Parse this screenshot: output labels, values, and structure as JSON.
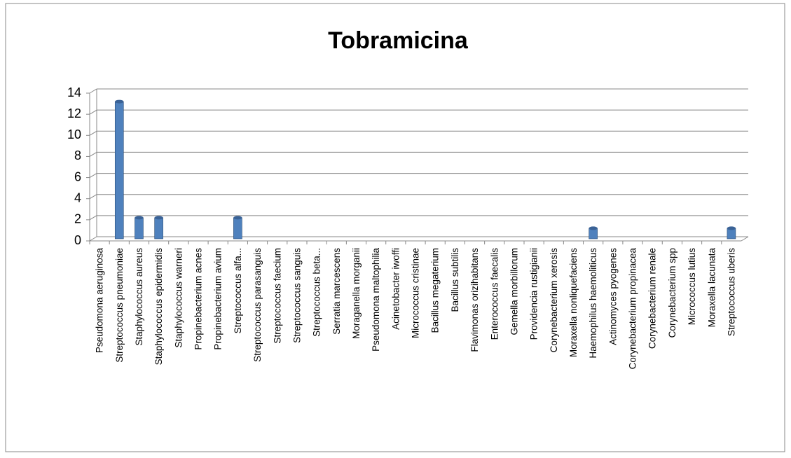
{
  "chart_data": {
    "type": "bar",
    "title": "Tobramicina",
    "categories": [
      "Pseudomona aeruginosa",
      "Streptococcus pneumoniae",
      "Staphylococcus aureus",
      "Staphylococcus epidermidis",
      "Staphylococcus warneri",
      "Propinebacterium acnes",
      "Propinebacterium avium",
      "Streptococcus alfa...",
      "Streptococcus parasanguis",
      "Streptococcus faecium",
      "Streptococcus sanguis",
      "Streptococcus beta...",
      "Serratia marcescens",
      "Moraganella morganii",
      "Pseudomona maltophilia",
      "Acinetobacter iwoffi",
      "Micrococcus cristinae",
      "Bacillus megaterium",
      "Bacillus subtilis",
      "Flavimonas orizihabitans",
      "Enterococcus faecalis",
      "Gemella morbillorum",
      "Providencia rustigianii",
      "Corynebacterium xerosis",
      "Moraxella nonliquefaciens",
      "Haemophilus haemoliticus",
      "Actinomyces pyogenes",
      "Corynebacterium propinacea",
      "Corynebacterium renale",
      "Corynebacterium spp",
      "Micrococcus lutius",
      "Moraxella lacunata",
      "Streptococcus uberis"
    ],
    "values": [
      0,
      13,
      2,
      2,
      0,
      0,
      0,
      2,
      0,
      0,
      0,
      0,
      0,
      0,
      0,
      0,
      0,
      0,
      0,
      0,
      0,
      0,
      0,
      0,
      0,
      1,
      0,
      0,
      0,
      0,
      0,
      0,
      1
    ],
    "color": "#4f81bd",
    "ylim": [
      0,
      14
    ],
    "yticks": [
      0,
      2,
      4,
      6,
      8,
      10,
      12,
      14
    ],
    "grid": true
  }
}
